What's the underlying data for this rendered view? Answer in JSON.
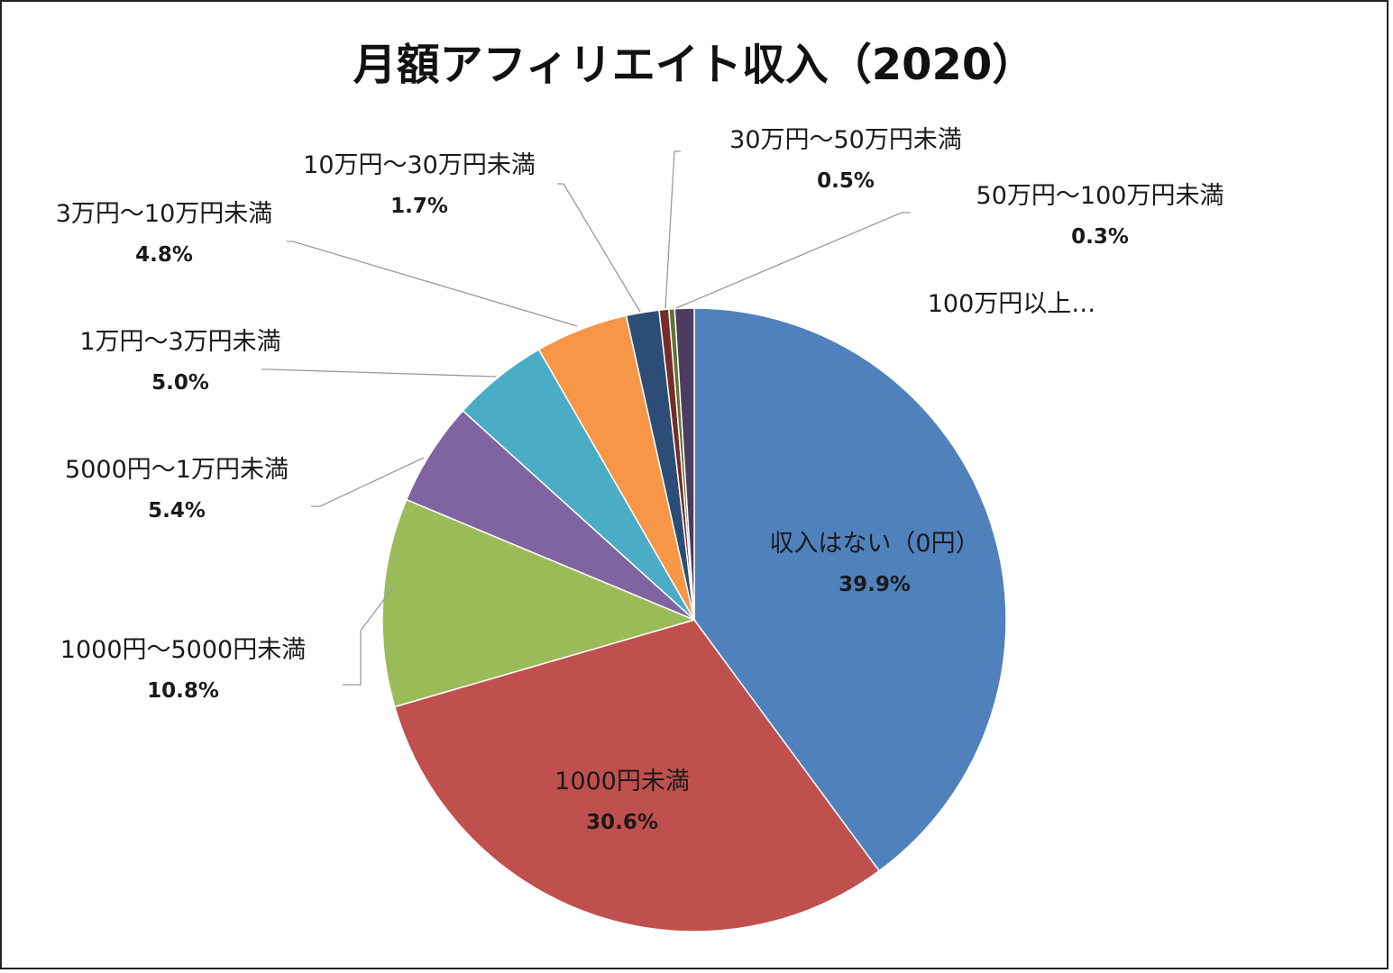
{
  "chart_data": {
    "type": "pie",
    "title": "月額アフィリエイト収入（2020）",
    "slices": [
      {
        "label": "収入はない（0円）",
        "value": 39.9,
        "pct_label": "39.9%",
        "color": "#4f81bd"
      },
      {
        "label": "1000円未満",
        "value": 30.6,
        "pct_label": "30.6%",
        "color": "#c0504d"
      },
      {
        "label": "1000円～5000円未満",
        "value": 10.8,
        "pct_label": "10.8%",
        "color": "#9bbb59"
      },
      {
        "label": "5000円～1万円未満",
        "value": 5.4,
        "pct_label": "5.4%",
        "color": "#8064a2"
      },
      {
        "label": "1万円～3万円未満",
        "value": 5.0,
        "pct_label": "5.0%",
        "color": "#4bacc6"
      },
      {
        "label": "3万円～10万円未満",
        "value": 4.8,
        "pct_label": "4.8%",
        "color": "#f79646"
      },
      {
        "label": "10万円～30万円未満",
        "value": 1.7,
        "pct_label": "1.7%",
        "color": "#2c4d75"
      },
      {
        "label": "30万円～50万円未満",
        "value": 0.5,
        "pct_label": "0.5%",
        "color": "#772c2a"
      },
      {
        "label": "50万円～100万円未満",
        "value": 0.3,
        "pct_label": "0.3%",
        "color": "#5f7530"
      },
      {
        "label": "100万円以上…",
        "value": 1.0,
        "pct_label": "",
        "color": "#4d3b62"
      }
    ]
  }
}
